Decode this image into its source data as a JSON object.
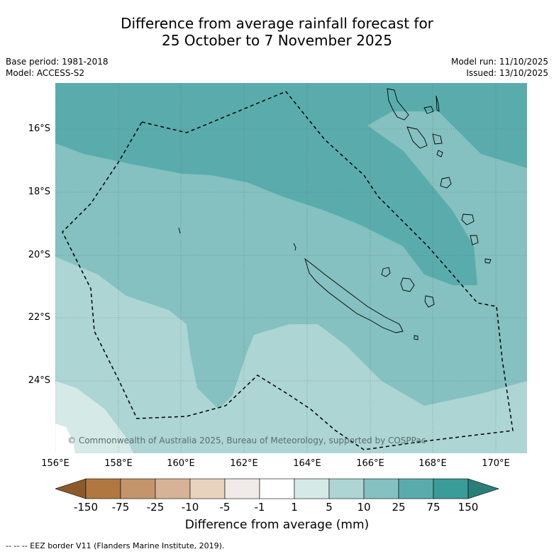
{
  "title": {
    "line1": "Difference from average rainfall forecast for",
    "line2": "25 October to 7 November 2025"
  },
  "meta": {
    "base_period": "Base period: 1981-2018",
    "model": "Model: ACCESS-S2",
    "model_run": "Model run: 11/10/2025",
    "issued": "Issued: 13/10/2025"
  },
  "axes": {
    "lat_ticks": [
      "16°S",
      "18°S",
      "20°S",
      "22°S",
      "24°S"
    ],
    "lon_ticks": [
      "156°E",
      "158°E",
      "160°E",
      "162°E",
      "164°E",
      "166°E",
      "168°E",
      "170°E"
    ]
  },
  "copyright": "© Commonwealth of Australia 2025, Bureau of Meteorology, supported by COSPPac",
  "colorbar": {
    "title": "Difference from average (mm)",
    "labels": [
      "-150",
      "-75",
      "-25",
      "-10",
      "-5",
      "-1",
      "1",
      "5",
      "10",
      "25",
      "75",
      "150"
    ],
    "colors": [
      "#8c5a2a",
      "#b07840",
      "#c4946a",
      "#d6b396",
      "#e8d3bf",
      "#f0ebe8",
      "#ffffff",
      "#d5e9e7",
      "#acd5d4",
      "#84c1c0",
      "#5aacac",
      "#3a9c98",
      "#2a7e78"
    ]
  },
  "footnote": "-- -- -- EEZ border V11 (Flanders Marine Institute, 2019)."
}
